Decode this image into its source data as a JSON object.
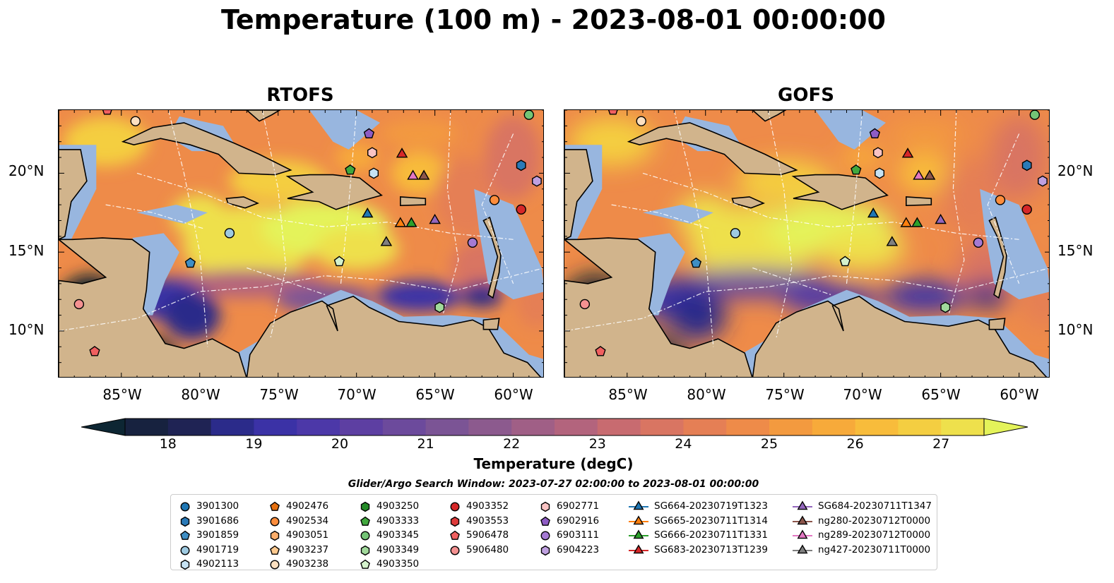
{
  "title": "Temperature (100 m) - 2023-08-01 00:00:00",
  "panels": [
    {
      "title": "RTOFS"
    },
    {
      "title": "GOFS"
    }
  ],
  "lon_ticks": [
    "85°W",
    "80°W",
    "75°W",
    "70°W",
    "65°W",
    "60°W"
  ],
  "lat_ticks": [
    "20°N",
    "15°N",
    "10°N"
  ],
  "colorbar": {
    "label": "Temperature (degC)",
    "ticks": [
      "18",
      "19",
      "20",
      "21",
      "22",
      "23",
      "24",
      "25",
      "26",
      "27"
    ],
    "colors": [
      "#0d2633",
      "#17223f",
      "#1f2354",
      "#2b2b8a",
      "#3b32a6",
      "#4c38a8",
      "#5d3fa2",
      "#6c4a9c",
      "#7b5495",
      "#8c5a8e",
      "#a05f86",
      "#b3647d",
      "#c86b70",
      "#d97562",
      "#e57f55",
      "#ee8b49",
      "#f39a3f",
      "#f7aa3a",
      "#f8bc3b",
      "#f4ce41",
      "#eee04c",
      "#e4f35a"
    ],
    "range": [
      18,
      27
    ]
  },
  "search_window": "Glider/Argo Search Window: 2023-07-27 02:00:00 to 2023-08-01 00:00:00",
  "legend": [
    {
      "label": "3901300",
      "marker": "circle",
      "color": "#1f77b4"
    },
    {
      "label": "3901686",
      "marker": "hexagon",
      "color": "#2a7ab8"
    },
    {
      "label": "3901859",
      "marker": "pentagon",
      "color": "#3f8ec4"
    },
    {
      "label": "4901719",
      "marker": "circle",
      "color": "#9ecae1"
    },
    {
      "label": "4902113",
      "marker": "hexagon",
      "color": "#c6e2f3"
    },
    {
      "label": "4902476",
      "marker": "pentagon",
      "color": "#e6700f"
    },
    {
      "label": "4902534",
      "marker": "circle",
      "color": "#fd8d3c"
    },
    {
      "label": "4903051",
      "marker": "hexagon",
      "color": "#fdae6b"
    },
    {
      "label": "4903237",
      "marker": "pentagon",
      "color": "#fdc98e"
    },
    {
      "label": "4903238",
      "marker": "circle",
      "color": "#fde0c0"
    },
    {
      "label": "4903250",
      "marker": "hexagon",
      "color": "#238b27"
    },
    {
      "label": "4903333",
      "marker": "pentagon",
      "color": "#41a83e"
    },
    {
      "label": "4903345",
      "marker": "circle",
      "color": "#74c476"
    },
    {
      "label": "4903349",
      "marker": "hexagon",
      "color": "#a1d99b"
    },
    {
      "label": "4903350",
      "marker": "pentagon",
      "color": "#d4f2cc"
    },
    {
      "label": "4903352",
      "marker": "circle",
      "color": "#d62728"
    },
    {
      "label": "4903553",
      "marker": "hexagon",
      "color": "#de3b3b"
    },
    {
      "label": "5906478",
      "marker": "pentagon",
      "color": "#f06060"
    },
    {
      "label": "5906480",
      "marker": "circle",
      "color": "#f49191"
    },
    {
      "label": "6902771",
      "marker": "hexagon",
      "color": "#f9c3c3"
    },
    {
      "label": "6902916",
      "marker": "pentagon",
      "color": "#8e5cc4"
    },
    {
      "label": "6903111",
      "marker": "circle",
      "color": "#a57ad3"
    },
    {
      "label": "6904223",
      "marker": "hexagon",
      "color": "#bfa0e0"
    },
    {
      "label": "SG664-20230719T1323",
      "marker": "triangle",
      "color": "#1f77b4"
    },
    {
      "label": "SG665-20230711T1314",
      "marker": "triangle",
      "color": "#ff7f0e"
    },
    {
      "label": "SG666-20230711T1331",
      "marker": "triangle",
      "color": "#2ca02c"
    },
    {
      "label": "SG683-20230713T1239",
      "marker": "triangle",
      "color": "#d62728"
    },
    {
      "label": "SG684-20230711T1347",
      "marker": "triangle",
      "color": "#9467bd"
    },
    {
      "label": "ng280-20230712T0000",
      "marker": "triangle",
      "color": "#8c564b"
    },
    {
      "label": "ng289-20230712T0000",
      "marker": "triangle",
      "color": "#e377c2"
    },
    {
      "label": "ng427-20230711T0000",
      "marker": "triangle",
      "color": "#7f7f7f"
    }
  ],
  "chart_data": {
    "type": "heatmap",
    "title": "Temperature (100 m) - 2023-08-01 00:00:00",
    "variable": "Temperature (degC)",
    "depth": "100 m",
    "time": "2023-08-01 00:00:00",
    "models": [
      "RTOFS",
      "GOFS"
    ],
    "xlim": [
      -89,
      -58
    ],
    "ylim": [
      7,
      24
    ],
    "xticks": [
      -85,
      -80,
      -75,
      -70,
      -65,
      -60
    ],
    "yticks": [
      10,
      15,
      20
    ],
    "colorbar_range": [
      18,
      27
    ],
    "observations": [
      {
        "id": "5906478",
        "lon": -85.9,
        "lat": 24.0
      },
      {
        "id": "4903238",
        "lon": -84.1,
        "lat": 23.3
      },
      {
        "id": "4903345",
        "lon": -59.0,
        "lat": 23.7
      },
      {
        "id": "6902916",
        "lon": -69.2,
        "lat": 22.5
      },
      {
        "id": "SG683-20230713T1239",
        "lon": -67.1,
        "lat": 21.2
      },
      {
        "id": "6902771",
        "lon": -69.0,
        "lat": 21.3
      },
      {
        "id": "3901686",
        "lon": -59.5,
        "lat": 20.5
      },
      {
        "id": "6904223",
        "lon": -58.5,
        "lat": 19.5
      },
      {
        "id": "4903333",
        "lon": -70.4,
        "lat": 20.2
      },
      {
        "id": "4902113",
        "lon": -68.9,
        "lat": 20.0
      },
      {
        "id": "ng289-20230712T0000",
        "lon": -66.4,
        "lat": 19.8
      },
      {
        "id": "ng280-20230712T0000",
        "lon": -65.7,
        "lat": 19.8
      },
      {
        "id": "4902534",
        "lon": -61.2,
        "lat": 18.3
      },
      {
        "id": "4903352",
        "lon": -59.5,
        "lat": 17.7
      },
      {
        "id": "SG664-20230719T1323",
        "lon": -69.3,
        "lat": 17.4
      },
      {
        "id": "SG665-20230711T1314",
        "lon": -67.2,
        "lat": 16.8
      },
      {
        "id": "SG666-20230711T1331",
        "lon": -66.5,
        "lat": 16.8
      },
      {
        "id": "SG684-20230711T1347",
        "lon": -65.0,
        "lat": 17.0
      },
      {
        "id": "4901719",
        "lon": -78.1,
        "lat": 16.2
      },
      {
        "id": "ng427-20230711T0000",
        "lon": -68.1,
        "lat": 15.6
      },
      {
        "id": "6903111",
        "lon": -62.6,
        "lat": 15.6
      },
      {
        "id": "3901859",
        "lon": -80.6,
        "lat": 14.3
      },
      {
        "id": "4903350",
        "lon": -71.1,
        "lat": 14.4
      },
      {
        "id": "5906480",
        "lon": -87.7,
        "lat": 11.7
      },
      {
        "id": "4903349",
        "lon": -64.7,
        "lat": 11.5
      },
      {
        "id": "5906478",
        "lon": -86.7,
        "lat": 8.7
      }
    ]
  }
}
